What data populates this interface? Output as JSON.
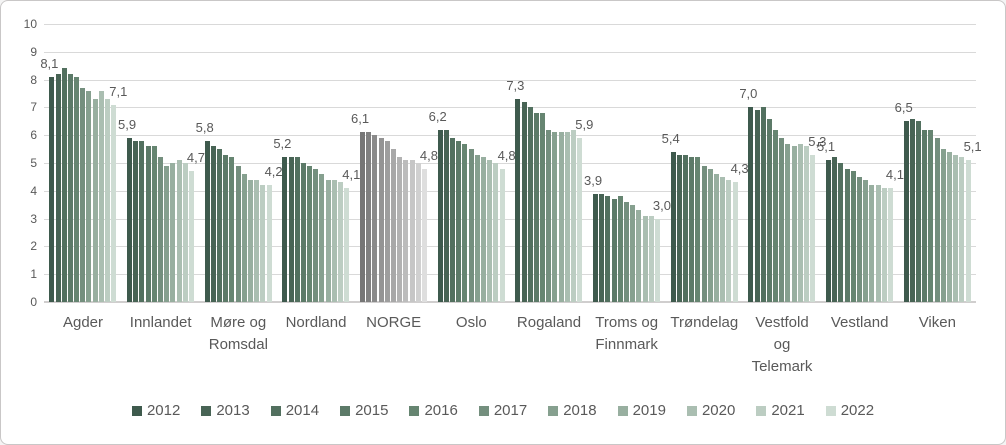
{
  "frame": {
    "bg": "#ffffff",
    "border_color": "#c9c7c7"
  },
  "axis": {
    "text_color": "#595959",
    "value_label_color": "#595959",
    "grid_color": "#d9d9d9",
    "baseline_color": "#d0cece"
  },
  "chart_data": {
    "type": "bar",
    "title": "",
    "xlabel": "",
    "ylabel": "",
    "ylim": [
      0,
      10
    ],
    "y_ticks": [
      "10",
      "9",
      "8",
      "7",
      "6",
      "5",
      "4",
      "3",
      "2",
      "1",
      "0"
    ],
    "grid": true,
    "legend_position": "bottom",
    "decimal_separator": ",",
    "series_years": [
      "2012",
      "2013",
      "2014",
      "2015",
      "2016",
      "2017",
      "2018",
      "2019",
      "2020",
      "2021",
      "2022"
    ],
    "green_palette": [
      "#3E5A4D",
      "#486455",
      "#52705F",
      "#5C7A68",
      "#668571",
      "#748F7E",
      "#86A08F",
      "#98AFA0",
      "#AABEB1",
      "#BCCDC2",
      "#CEDCD3"
    ],
    "gray_palette": [
      "#767676",
      "#808080",
      "#8A8A8A",
      "#949494",
      "#9E9E9E",
      "#A8A8A8",
      "#B2B2B2",
      "#BCBCBC",
      "#C6C6C6",
      "#D0D0D0",
      "#DEDEDE"
    ],
    "groups": [
      {
        "category": "Agder",
        "display": "Agder",
        "palette": "green",
        "values": [
          8.1,
          8.2,
          8.4,
          8.2,
          8.1,
          7.7,
          7.6,
          7.3,
          7.6,
          7.3,
          7.1
        ],
        "label_first": "8,1",
        "label_last": "7,1"
      },
      {
        "category": "Innlandet",
        "display": "Innlandet",
        "palette": "green",
        "values": [
          5.9,
          5.8,
          5.8,
          5.6,
          5.6,
          5.2,
          4.9,
          5.0,
          5.1,
          5.0,
          4.7
        ],
        "label_first": "5,9",
        "label_last": "4,7"
      },
      {
        "category": "Møre og Romsdal",
        "display": "Møre og\nRomsdal",
        "palette": "green",
        "values": [
          5.8,
          5.6,
          5.5,
          5.3,
          5.2,
          4.9,
          4.6,
          4.4,
          4.4,
          4.2,
          4.2
        ],
        "label_first": "5,8",
        "label_last": "4,2"
      },
      {
        "category": "Nordland",
        "display": "Nordland",
        "palette": "green",
        "values": [
          5.2,
          5.2,
          5.2,
          5.0,
          4.9,
          4.8,
          4.6,
          4.4,
          4.4,
          4.3,
          4.1
        ],
        "label_first": "5,2",
        "label_last": "4,1"
      },
      {
        "category": "NORGE",
        "display": "NORGE",
        "palette": "gray",
        "values": [
          6.1,
          6.1,
          6.0,
          5.9,
          5.8,
          5.5,
          5.2,
          5.1,
          5.1,
          5.0,
          4.8
        ],
        "label_first": "6,1",
        "label_last": "4,8"
      },
      {
        "category": "Oslo",
        "display": "Oslo",
        "palette": "green",
        "values": [
          6.2,
          6.2,
          5.9,
          5.8,
          5.7,
          5.5,
          5.3,
          5.2,
          5.1,
          5.0,
          4.8
        ],
        "label_first": "6,2",
        "label_last": "4,8"
      },
      {
        "category": "Rogaland",
        "display": "Rogaland",
        "palette": "green",
        "values": [
          7.3,
          7.2,
          7.0,
          6.8,
          6.8,
          6.2,
          6.1,
          6.1,
          6.1,
          6.2,
          5.9
        ],
        "label_first": "7,3",
        "label_last": "5,9"
      },
      {
        "category": "Troms og Finnmark",
        "display": "Troms og\nFinnmark",
        "palette": "green",
        "values": [
          3.9,
          3.9,
          3.8,
          3.7,
          3.8,
          3.6,
          3.5,
          3.3,
          3.1,
          3.1,
          3.0
        ],
        "label_first": "3,9",
        "label_last": "3,0"
      },
      {
        "category": "Trøndelag",
        "display": "Trøndelag",
        "palette": "green",
        "values": [
          5.4,
          5.3,
          5.3,
          5.2,
          5.2,
          4.9,
          4.8,
          4.6,
          4.5,
          4.4,
          4.3
        ],
        "label_first": "5,4",
        "label_last": "4,3"
      },
      {
        "category": "Vestfold og Telemark",
        "display": "Vestfold\nog\nTelemark",
        "palette": "green",
        "values": [
          7.0,
          6.9,
          7.0,
          6.6,
          6.2,
          5.9,
          5.7,
          5.6,
          5.7,
          5.6,
          5.3
        ],
        "label_first": "7,0",
        "label_last": "5,3"
      },
      {
        "category": "Vestland",
        "display": "Vestland",
        "palette": "green",
        "values": [
          5.1,
          5.2,
          5.0,
          4.8,
          4.7,
          4.5,
          4.4,
          4.2,
          4.2,
          4.1,
          4.1
        ],
        "label_first": "5,1",
        "label_last": "4,1"
      },
      {
        "category": "Viken",
        "display": "Viken",
        "palette": "green",
        "values": [
          6.5,
          6.6,
          6.5,
          6.2,
          6.2,
          5.9,
          5.5,
          5.4,
          5.3,
          5.2,
          5.1
        ],
        "label_first": "6,5",
        "label_last": "5,1"
      }
    ]
  }
}
